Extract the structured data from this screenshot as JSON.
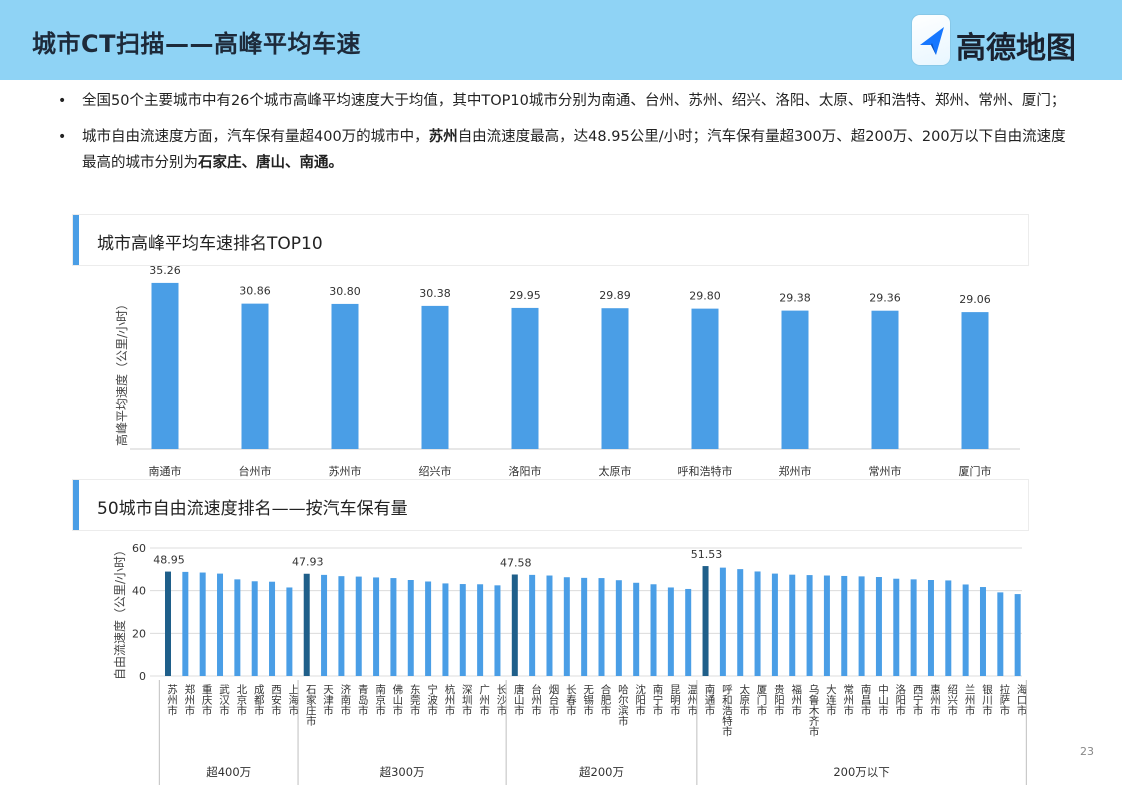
{
  "header": {
    "title": "城市CT扫描——高峰平均车速",
    "logo_text": "高德地图",
    "bg_color": "#8fd3f5"
  },
  "bullets": [
    {
      "parts": [
        {
          "text": "全国50个主要城市中有26个城市高峰平均速度大于均值，其中TOP10城市分别为南通、台州、苏州、绍兴、洛阳、太原、呼和浩特、郑州、常州、厦门；",
          "bold": false
        }
      ]
    },
    {
      "parts": [
        {
          "text": "城市自由流速度方面，汽车保有量超400万的城市中，",
          "bold": false
        },
        {
          "text": "苏州",
          "bold": true
        },
        {
          "text": "自由流速度最高，达48.95公里/小时；汽车保有量超300万、超200万、200万以下自由流速度最高的城市分别为",
          "bold": false
        },
        {
          "text": "石家庄、唐山、南通。",
          "bold": true
        }
      ]
    }
  ],
  "panel1": {
    "title": "城市高峰平均车速排名TOP10"
  },
  "panel2": {
    "title": "50城市自由流速度排名——按汽车保有量"
  },
  "page_number": "23",
  "colors": {
    "bar": "#4a9ee6",
    "bar_highlight": "#1f5f8a",
    "accent": "#4a9ee6"
  },
  "chart_data": [
    {
      "type": "bar",
      "title": "城市高峰平均车速排名TOP10",
      "ylabel": "高峰平均速度（公里/小时）",
      "categories": [
        "南通市",
        "台州市",
        "苏州市",
        "绍兴市",
        "洛阳市",
        "太原市",
        "呼和浩特市",
        "郑州市",
        "常州市",
        "厦门市"
      ],
      "values": [
        35.26,
        30.86,
        30.8,
        30.38,
        29.95,
        29.89,
        29.8,
        29.38,
        29.36,
        29.06
      ],
      "value_labels": [
        "35.26",
        "30.86",
        "30.80",
        "30.38",
        "29.95",
        "29.89",
        "29.80",
        "29.38",
        "29.36",
        "29.06"
      ],
      "ylim": [
        0,
        38
      ],
      "grid": false
    },
    {
      "type": "bar",
      "title": "50城市自由流速度排名——按汽车保有量",
      "ylabel": "自由流速度（公里/小时）",
      "ylim": [
        0,
        60
      ],
      "yticks": [
        "0",
        "20",
        "40",
        "60"
      ],
      "grid": true,
      "groups": [
        {
          "name": "超400万",
          "categories": [
            "苏州市",
            "郑州市",
            "重庆市",
            "武汉市",
            "北京市",
            "成都市",
            "西安市",
            "上海市"
          ],
          "values": [
            48.95,
            48.8,
            48.5,
            48.0,
            45.3,
            44.4,
            44.2,
            41.5
          ],
          "label": "48.95"
        },
        {
          "name": "超300万",
          "categories": [
            "石家庄市",
            "天津市",
            "济南市",
            "青岛市",
            "南京市",
            "佛山市",
            "东莞市",
            "宁波市",
            "杭州市",
            "深圳市",
            "广州市",
            "长沙市"
          ],
          "values": [
            47.93,
            47.4,
            46.8,
            46.6,
            46.2,
            45.9,
            45.0,
            44.3,
            43.4,
            43.1,
            43.0,
            42.5
          ],
          "label": "47.93"
        },
        {
          "name": "超200万",
          "categories": [
            "唐山市",
            "台州市",
            "烟台市",
            "长春市",
            "无锡市",
            "合肥市",
            "哈尔滨市",
            "沈阳市",
            "南宁市",
            "昆明市",
            "温州市"
          ],
          "values": [
            47.58,
            47.4,
            47.1,
            46.3,
            46.0,
            45.9,
            44.9,
            43.7,
            43.0,
            41.5,
            40.8
          ],
          "label": "47.58"
        },
        {
          "name": "200万以下",
          "categories": [
            "南通市",
            "呼和浩特市",
            "太原市",
            "厦门市",
            "贵阳市",
            "福州市",
            "乌鲁木齐市",
            "大连市",
            "常州市",
            "南昌市",
            "中山市",
            "洛阳市",
            "西宁市",
            "惠州市",
            "绍兴市",
            "兰州市",
            "银川市",
            "拉萨市",
            "海口市"
          ],
          "values": [
            51.53,
            50.8,
            50.1,
            49.0,
            48.0,
            47.5,
            47.3,
            47.1,
            46.9,
            46.7,
            46.4,
            45.6,
            45.3,
            45.0,
            44.8,
            42.9,
            41.7,
            39.2,
            38.4
          ],
          "label": "51.53"
        }
      ]
    }
  ]
}
